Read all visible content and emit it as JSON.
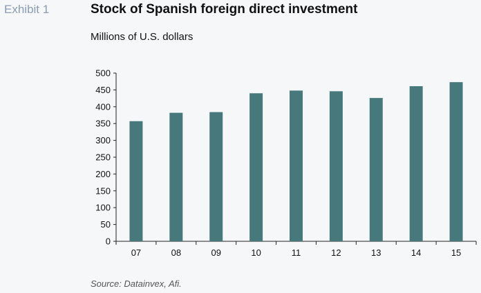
{
  "header": {
    "exhibit": "Exhibit 1",
    "title": "Stock of Spanish foreign direct investment",
    "subtitle": "Millions of U.S. dollars"
  },
  "footer": {
    "source": "Source: Datainvex, Afi."
  },
  "chart_data": {
    "type": "bar",
    "title": "Stock of Spanish foreign direct investment",
    "ylabel": "Millions of U.S. dollars",
    "xlabel": "",
    "categories": [
      "07",
      "08",
      "09",
      "10",
      "11",
      "12",
      "13",
      "14",
      "15"
    ],
    "values": [
      357,
      382,
      384,
      440,
      448,
      446,
      426,
      461,
      473
    ],
    "ylim": [
      0,
      500
    ],
    "yticks": [
      0,
      50,
      100,
      150,
      200,
      250,
      300,
      350,
      400,
      450,
      500
    ],
    "grid": false,
    "legend": "none",
    "bar_color": "#47797c"
  }
}
